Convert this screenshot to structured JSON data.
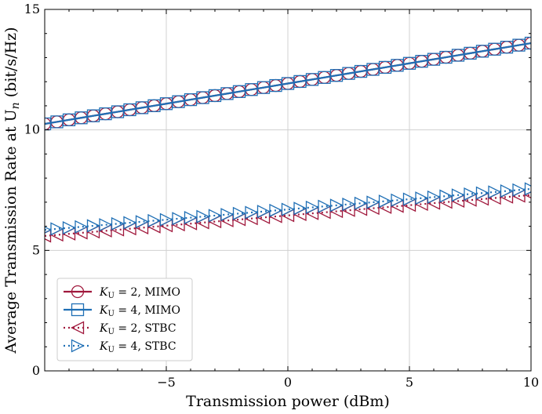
{
  "chart_data": {
    "type": "line",
    "xlabel": "Transmission power (dBm)",
    "ylabel": "Average Transmission Rate at U",
    "ylabel_subscript": "n",
    "ylabel_unit": " (bit/s/Hz)",
    "xlim": [
      -10,
      10
    ],
    "ylim": [
      0,
      15
    ],
    "xticks": [
      -5,
      0,
      5,
      10
    ],
    "xtick_labels": [
      "−5",
      "0",
      "5",
      "10"
    ],
    "yticks": [
      0,
      5,
      10,
      15
    ],
    "ytick_labels": [
      "0",
      "5",
      "10",
      "15"
    ],
    "grid": true,
    "legend_position": "lower-left",
    "x": [
      -10,
      -9.5,
      -9,
      -8.5,
      -8,
      -7.5,
      -7,
      -6.5,
      -6,
      -5.5,
      -5,
      -4.5,
      -4,
      -3.5,
      -3,
      -2.5,
      -2,
      -1.5,
      -1,
      -0.5,
      0,
      0.5,
      1,
      1.5,
      2,
      2.5,
      3,
      3.5,
      4,
      4.5,
      5,
      5.5,
      6,
      6.5,
      7,
      7.5,
      8,
      8.5,
      9,
      9.5,
      10
    ],
    "series": [
      {
        "name": "K_U = 2, MIMO",
        "legend_symbol": "K",
        "legend_sub": "U",
        "legend_rest": " = 2, MIMO",
        "color": "#a0183c",
        "dash": "solid",
        "marker": "circle",
        "y_start": 10.25,
        "y_end": 13.6
      },
      {
        "name": "K_U = 4, MIMO",
        "legend_symbol": "K",
        "legend_sub": "U",
        "legend_rest": " = 4, MIMO",
        "color": "#1f6fb5",
        "dash": "solid",
        "marker": "square",
        "y_start": 10.25,
        "y_end": 13.6
      },
      {
        "name": "K_U = 2, STBC",
        "legend_symbol": "K",
        "legend_sub": "U",
        "legend_rest": " = 2, STBC",
        "color": "#a0183c",
        "dash": "dotted",
        "marker": "triangle-left",
        "y_start": 5.6,
        "y_end": 7.3
      },
      {
        "name": "K_U = 4, STBC",
        "legend_symbol": "K",
        "legend_sub": "U",
        "legend_rest": " = 4, STBC",
        "color": "#1f6fb5",
        "dash": "dotted",
        "marker": "triangle-right",
        "y_start": 5.85,
        "y_end": 7.55
      }
    ]
  }
}
